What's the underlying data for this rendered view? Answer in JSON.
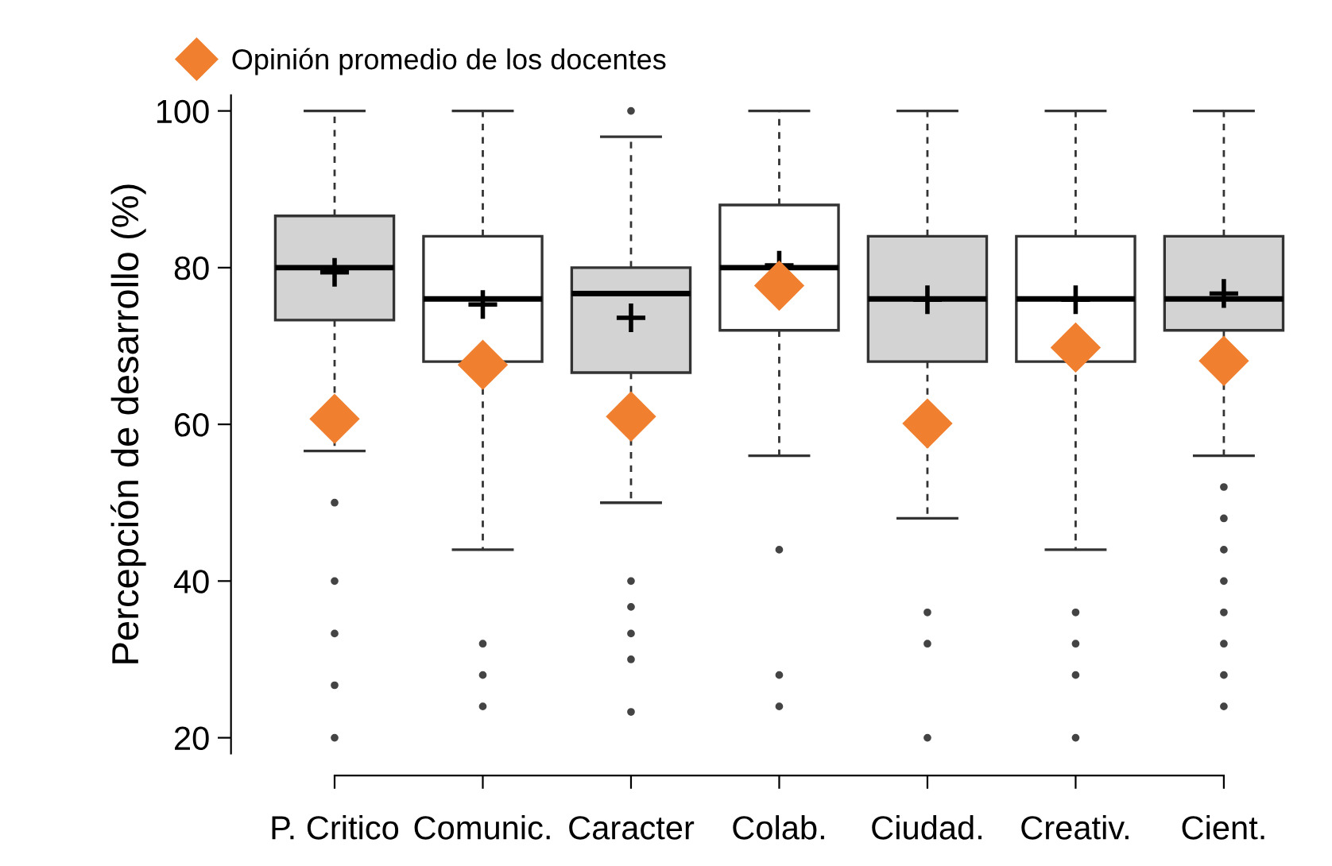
{
  "chart_data": {
    "type": "box",
    "ylabel": "Percepción de desarrollo (%)",
    "categories": [
      "P. Critico",
      "Comunic.",
      "Caracter",
      "Colab.",
      "Ciudad.",
      "Creativ.",
      "Cient."
    ],
    "colors": [
      "#d3d3d3",
      "#ffffff",
      "#d3d3d3",
      "#ffffff",
      "#d3d3d3",
      "#ffffff",
      "#d3d3d3"
    ],
    "boxes": [
      {
        "low": 56.6,
        "q1": 73.3,
        "median": 80,
        "q3": 86.6,
        "high": 100,
        "mean": 79.4,
        "outliers": [
          50,
          40,
          33.3,
          26.7,
          20
        ]
      },
      {
        "low": 44,
        "q1": 68,
        "median": 76,
        "q3": 84,
        "high": 100,
        "mean": 75.3,
        "outliers": [
          32,
          28,
          24
        ]
      },
      {
        "low": 50,
        "q1": 66.6,
        "median": 76.7,
        "q3": 80,
        "high": 96.7,
        "mean": 73.6,
        "outliers": [
          100,
          40,
          36.7,
          33.3,
          30,
          23.3
        ]
      },
      {
        "low": 56,
        "q1": 72,
        "median": 80,
        "q3": 88,
        "high": 100,
        "mean": 80.3,
        "outliers": [
          44,
          28,
          24
        ]
      },
      {
        "low": 48,
        "q1": 68,
        "median": 76,
        "q3": 84,
        "high": 100,
        "mean": 75.9,
        "outliers": [
          36,
          32,
          20
        ]
      },
      {
        "low": 44,
        "q1": 68,
        "median": 76,
        "q3": 84,
        "high": 100,
        "mean": 75.9,
        "outliers": [
          36,
          32,
          28,
          20
        ]
      },
      {
        "low": 56,
        "q1": 72,
        "median": 76,
        "q3": 84,
        "high": 100,
        "mean": 76.7,
        "outliers": [
          52,
          48,
          44,
          40,
          36,
          32,
          28,
          24
        ]
      }
    ],
    "series": [
      {
        "type": "scatter",
        "name": "Opinión promedio de los docentes",
        "color": "#f07f2f",
        "marker": "diamond",
        "x": [
          "P. Critico",
          "Comunic.",
          "Caracter",
          "Colab.",
          "Ciudad.",
          "Creativ.",
          "Cient."
        ],
        "values": [
          60.7,
          67.6,
          61,
          77.7,
          60.1,
          69.8,
          68.1
        ]
      }
    ],
    "ylim": [
      18,
      102
    ],
    "yticks": [
      20,
      40,
      60,
      80,
      100
    ],
    "grid": false,
    "legend": "top left"
  }
}
